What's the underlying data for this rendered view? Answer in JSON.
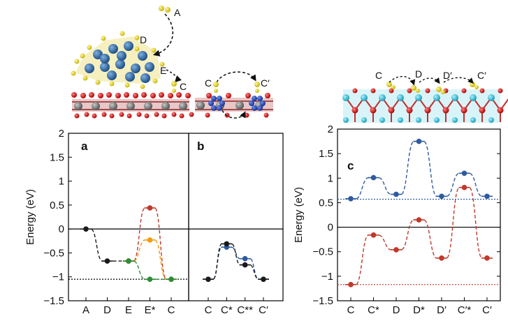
{
  "panel_labels": {
    "a": "a",
    "b": "b",
    "c": "c"
  },
  "y_axis_label": "Energy (eV)",
  "illustration_labels": {
    "left": [
      "A",
      "D",
      "E",
      "C"
    ],
    "middle": [
      "C",
      "C′"
    ],
    "right": [
      "C",
      "D",
      "D′",
      "C′"
    ]
  },
  "chart_data": [
    {
      "type": "line",
      "panel": "a",
      "categories": [
        "A",
        "D",
        "E",
        "E*",
        "C"
      ],
      "ylabel": "Energy (eV)",
      "ylim": [
        -1.5,
        2
      ],
      "yticks": [
        -1.5,
        -1,
        -0.5,
        0,
        0.5,
        1,
        1.5,
        2
      ],
      "reference_lines": [
        {
          "y": 0,
          "style": "solid",
          "color": "#000000"
        },
        {
          "y": -1.05,
          "style": "dotted",
          "color": "#000000"
        }
      ],
      "series": [
        {
          "name": "path-black",
          "color": "#1a1a1a",
          "x": [
            0,
            1,
            2
          ],
          "values": [
            0,
            -0.67,
            -0.67
          ]
        },
        {
          "name": "path-red",
          "color": "#c0392b",
          "x": [
            2,
            3,
            4
          ],
          "values": [
            -0.67,
            0.44,
            -1.05
          ]
        },
        {
          "name": "path-orange",
          "color": "#f39c12",
          "x": [
            2,
            3,
            4
          ],
          "values": [
            -0.67,
            -0.23,
            -1.05
          ]
        },
        {
          "name": "path-green",
          "color": "#2e8b3a",
          "x": [
            2,
            3,
            4
          ],
          "values": [
            -0.67,
            -1.05,
            -1.05
          ]
        }
      ]
    },
    {
      "type": "line",
      "panel": "b",
      "categories": [
        "C",
        "C*",
        "C**",
        "C′"
      ],
      "ylim": [
        -1.5,
        2
      ],
      "reference_lines": [
        {
          "y": 0,
          "style": "solid",
          "color": "#000000"
        }
      ],
      "series": [
        {
          "name": "path-blue",
          "color": "#2f5a9e",
          "x": [
            0,
            1,
            2,
            3
          ],
          "values": [
            -1.05,
            -0.38,
            -0.62,
            -1.05
          ]
        },
        {
          "name": "path-black",
          "color": "#1a1a1a",
          "x": [
            0,
            1,
            2,
            3
          ],
          "values": [
            -1.05,
            -0.31,
            -0.75,
            -1.05
          ]
        }
      ]
    },
    {
      "type": "line",
      "panel": "c",
      "categories": [
        "C",
        "C*",
        "D",
        "D*",
        "D′",
        "C′*",
        "C′"
      ],
      "ylabel": "Energy (eV)",
      "ylim": [
        -1.5,
        2
      ],
      "yticks": [
        -1.5,
        -1,
        -0.5,
        0,
        0.5,
        1,
        1.5,
        2
      ],
      "reference_lines": [
        {
          "y": 0,
          "style": "solid",
          "color": "#000000"
        },
        {
          "y": 0.57,
          "style": "dotted",
          "color": "#2f5a9e"
        },
        {
          "y": -1.17,
          "style": "dotted",
          "color": "#c0392b"
        }
      ],
      "series": [
        {
          "name": "path-blue",
          "color": "#2f5a9e",
          "x": [
            0,
            1,
            2,
            3,
            4,
            5,
            6
          ],
          "values": [
            0.58,
            1.01,
            0.67,
            1.75,
            0.63,
            1.1,
            0.63
          ]
        },
        {
          "name": "path-red",
          "color": "#c0392b",
          "x": [
            0,
            1,
            2,
            3,
            4,
            5,
            6
          ],
          "values": [
            -1.17,
            -0.16,
            -0.46,
            0.15,
            -0.63,
            0.81,
            -0.63
          ]
        }
      ]
    }
  ]
}
